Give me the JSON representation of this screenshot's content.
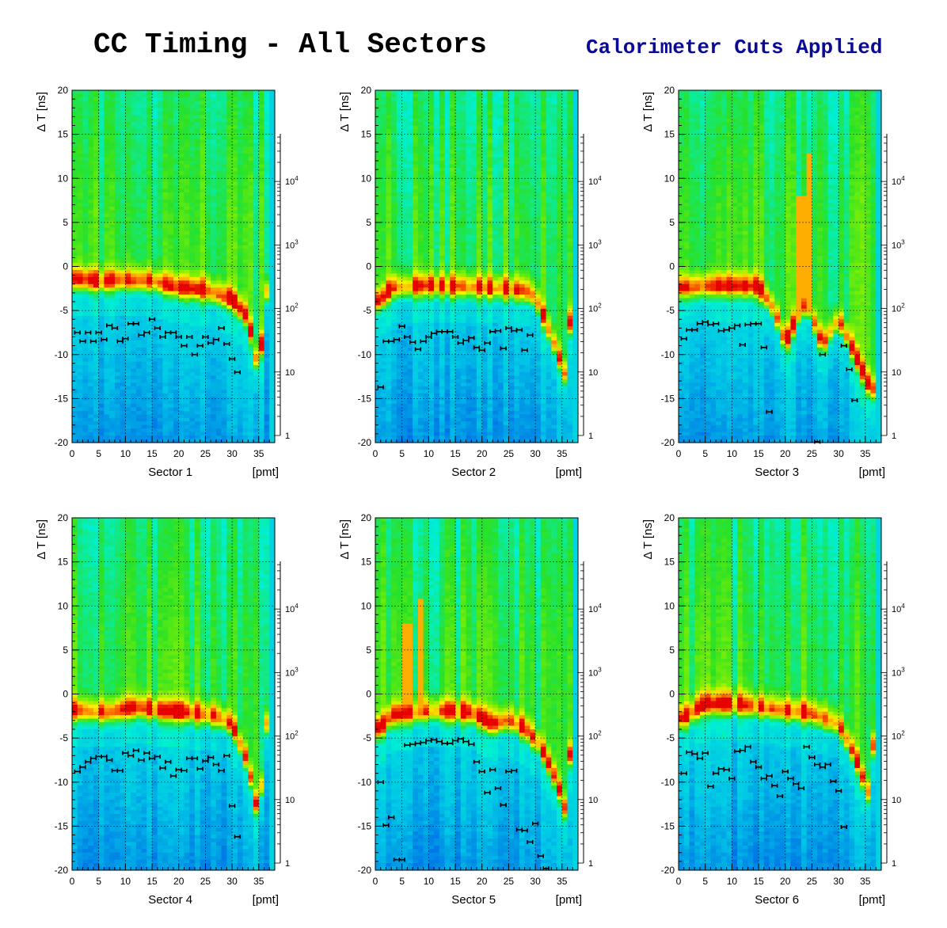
{
  "title": "CC Timing - All Sectors",
  "subtitle": "Calorimeter Cuts Applied",
  "colors": {
    "subtitle": "#0a0a96",
    "grid": "#000000",
    "markers": "#000000"
  },
  "chart_data": [
    {
      "type": "heatmap",
      "label": "Sector 1",
      "xunit": "[pmt]",
      "ylabel": "Δ T   [ns]",
      "xlim": [
        0,
        38
      ],
      "ylim": [
        -20,
        20
      ],
      "z_log": true,
      "grid": true,
      "xticks": [
        0,
        5,
        10,
        15,
        20,
        25,
        30,
        35
      ],
      "yticks": [
        -20,
        -15,
        -10,
        -5,
        0,
        5,
        10,
        15,
        20
      ],
      "zticks": [
        "1",
        "10",
        "10^2",
        "10^3",
        "10^4"
      ],
      "means": [
        [
          1,
          -7.5
        ],
        [
          2,
          -8.5
        ],
        [
          3,
          -7.5
        ],
        [
          4,
          -8.5
        ],
        [
          5,
          -7.5
        ],
        [
          6,
          -8.3
        ],
        [
          7,
          -6.7
        ],
        [
          8,
          -7.0
        ],
        [
          9,
          -8.5
        ],
        [
          10,
          -8.2
        ],
        [
          11,
          -6.5
        ],
        [
          12,
          -6.5
        ],
        [
          13,
          -7.8
        ],
        [
          14,
          -7.5
        ],
        [
          15,
          -6.0
        ],
        [
          16,
          -7.0
        ],
        [
          17,
          -8.0
        ],
        [
          18,
          -7.5
        ],
        [
          19,
          -7.5
        ],
        [
          20,
          -8.0
        ],
        [
          21,
          -9.0
        ],
        [
          22,
          -8.0
        ],
        [
          23,
          -10.0
        ],
        [
          24,
          -9.0
        ],
        [
          25,
          -8.0
        ],
        [
          26,
          -8.7
        ],
        [
          27,
          -8.3
        ],
        [
          28,
          -7.0
        ],
        [
          29,
          -8.8
        ],
        [
          30,
          -10.5
        ],
        [
          31,
          -12.0
        ]
      ],
      "peaks": [
        [
          1,
          -1.5
        ],
        [
          5,
          -1.8
        ],
        [
          10,
          -1.6
        ],
        [
          15,
          -1.8
        ],
        [
          20,
          -2.5
        ],
        [
          25,
          -2.8
        ],
        [
          30,
          -3.8
        ],
        [
          33,
          -6
        ],
        [
          35,
          -12
        ],
        [
          37,
          0
        ]
      ],
      "spikes": []
    },
    {
      "type": "heatmap",
      "label": "Sector 2",
      "xunit": "[pmt]",
      "ylabel": "Δ T   [ns]",
      "xlim": [
        0,
        38
      ],
      "ylim": [
        -20,
        20
      ],
      "z_log": true,
      "grid": true,
      "xticks": [
        0,
        5,
        10,
        15,
        20,
        25,
        30,
        35
      ],
      "yticks": [
        -20,
        -15,
        -10,
        -5,
        0,
        5,
        10,
        15,
        20
      ],
      "zticks": [
        "1",
        "10",
        "10^2",
        "10^3",
        "10^4"
      ],
      "means": [
        [
          1,
          -13.7
        ],
        [
          2,
          -8.5
        ],
        [
          3,
          -8.5
        ],
        [
          4,
          -8.3
        ],
        [
          5,
          -6.8
        ],
        [
          6,
          -8.0
        ],
        [
          7,
          -8.6
        ],
        [
          8,
          -9.4
        ],
        [
          9,
          -8.5
        ],
        [
          10,
          -8.0
        ],
        [
          11,
          -7.6
        ],
        [
          12,
          -7.4
        ],
        [
          13,
          -7.4
        ],
        [
          14,
          -7.4
        ],
        [
          15,
          -8.0
        ],
        [
          16,
          -8.7
        ],
        [
          17,
          -8.4
        ],
        [
          18,
          -8.1
        ],
        [
          19,
          -9.2
        ],
        [
          20,
          -9.5
        ],
        [
          21,
          -8.7
        ],
        [
          22,
          -7.4
        ],
        [
          23,
          -7.3
        ],
        [
          24,
          -9.3
        ],
        [
          25,
          -7.0
        ],
        [
          26,
          -7.3
        ],
        [
          27,
          -7.2
        ],
        [
          28,
          -9.5
        ],
        [
          29,
          -7.8
        ]
      ],
      "peaks": [
        [
          1,
          -4
        ],
        [
          3,
          -2.5
        ],
        [
          10,
          -2.3
        ],
        [
          20,
          -2.5
        ],
        [
          28,
          -2.8
        ],
        [
          30,
          -3.5
        ],
        [
          33,
          -8
        ],
        [
          36,
          -13
        ],
        [
          37,
          0
        ]
      ],
      "spikes": []
    },
    {
      "type": "heatmap",
      "label": "Sector 3",
      "xunit": "[pmt]",
      "ylabel": "Δ T   [ns]",
      "xlim": [
        0,
        38
      ],
      "ylim": [
        -20,
        20
      ],
      "z_log": true,
      "grid": true,
      "xticks": [
        0,
        5,
        10,
        15,
        20,
        25,
        30,
        35
      ],
      "yticks": [
        -20,
        -15,
        -10,
        -5,
        0,
        5,
        10,
        15,
        20
      ],
      "zticks": [
        "1",
        "10",
        "10^2",
        "10^3",
        "10^4"
      ],
      "means": [
        [
          1,
          -8.2
        ],
        [
          2,
          -7.2
        ],
        [
          3,
          -7.2
        ],
        [
          4,
          -6.5
        ],
        [
          5,
          -6.3
        ],
        [
          6,
          -6.6
        ],
        [
          7,
          -6.5
        ],
        [
          8,
          -7.3
        ],
        [
          9,
          -7.2
        ],
        [
          10,
          -7.0
        ],
        [
          11,
          -6.7
        ],
        [
          12,
          -8.9
        ],
        [
          13,
          -6.6
        ],
        [
          14,
          -6.5
        ],
        [
          15,
          -6.5
        ],
        [
          16,
          -9.2
        ],
        [
          17,
          -16.5
        ],
        [
          26,
          -19.9
        ],
        [
          27,
          -10.0
        ],
        [
          31,
          -9.0
        ],
        [
          32,
          -11.7
        ],
        [
          33,
          -15.2
        ]
      ],
      "peaks": [
        [
          1,
          -2.5
        ],
        [
          8,
          -2.3
        ],
        [
          15,
          -2.4
        ],
        [
          18,
          -5
        ],
        [
          20,
          -9
        ],
        [
          22,
          -6
        ],
        [
          24,
          -4
        ],
        [
          27,
          -9
        ],
        [
          30,
          -6
        ],
        [
          33,
          -10
        ],
        [
          36,
          -14
        ]
      ],
      "spikes": [
        [
          24.5,
          13
        ],
        [
          22.8,
          8
        ]
      ]
    },
    {
      "type": "heatmap",
      "label": "Sector 4",
      "xunit": "[pmt]",
      "ylabel": "Δ T   [ns]",
      "xlim": [
        0,
        38
      ],
      "ylim": [
        -20,
        20
      ],
      "z_log": true,
      "grid": true,
      "xticks": [
        0,
        5,
        10,
        15,
        20,
        25,
        30,
        35
      ],
      "yticks": [
        -20,
        -15,
        -10,
        -5,
        0,
        5,
        10,
        15,
        20
      ],
      "zticks": [
        "1",
        "10",
        "10^2",
        "10^3",
        "10^4"
      ],
      "means": [
        [
          1,
          -8.8
        ],
        [
          2,
          -8.3
        ],
        [
          3,
          -7.7
        ],
        [
          4,
          -7.3
        ],
        [
          5,
          -7.1
        ],
        [
          6,
          -7.1
        ],
        [
          7,
          -7.5
        ],
        [
          8,
          -8.7
        ],
        [
          9,
          -8.7
        ],
        [
          10,
          -6.7
        ],
        [
          11,
          -7.0
        ],
        [
          12,
          -6.4
        ],
        [
          13,
          -7.5
        ],
        [
          14,
          -6.7
        ],
        [
          15,
          -7.3
        ],
        [
          16,
          -7.1
        ],
        [
          17,
          -8.4
        ],
        [
          18,
          -7.7
        ],
        [
          19,
          -9.3
        ],
        [
          20,
          -8.6
        ],
        [
          21,
          -8.7
        ],
        [
          22,
          -7.3
        ],
        [
          23,
          -7.3
        ],
        [
          24,
          -8.5
        ],
        [
          25,
          -7.6
        ],
        [
          26,
          -7.2
        ],
        [
          27,
          -8.0
        ],
        [
          28,
          -8.7
        ],
        [
          29,
          -7.0
        ],
        [
          30,
          -12.7
        ],
        [
          31,
          -16.2
        ]
      ],
      "peaks": [
        [
          1,
          -2.0
        ],
        [
          7,
          -2.2
        ],
        [
          12,
          -1.6
        ],
        [
          17,
          -2.0
        ],
        [
          22,
          -2.2
        ],
        [
          27,
          -2.6
        ],
        [
          30,
          -3.5
        ],
        [
          33,
          -8
        ],
        [
          35,
          -14
        ],
        [
          37,
          0
        ]
      ],
      "spikes": []
    },
    {
      "type": "heatmap",
      "label": "Sector 5",
      "xunit": "[pmt]",
      "ylabel": "Δ T   [ns]",
      "xlim": [
        0,
        38
      ],
      "ylim": [
        -20,
        20
      ],
      "z_log": true,
      "grid": true,
      "xticks": [
        0,
        5,
        10,
        15,
        20,
        25,
        30,
        35
      ],
      "yticks": [
        -20,
        -15,
        -10,
        -5,
        0,
        5,
        10,
        15,
        20
      ],
      "zticks": [
        "1",
        "10",
        "10^2",
        "10^3",
        "10^4"
      ],
      "means": [
        [
          1,
          -10.0
        ],
        [
          2,
          -14.9
        ],
        [
          3,
          -14.0
        ],
        [
          4,
          -18.8
        ],
        [
          5,
          -18.8
        ],
        [
          6,
          -5.8
        ],
        [
          7,
          -5.7
        ],
        [
          8,
          -5.6
        ],
        [
          9,
          -5.5
        ],
        [
          10,
          -5.3
        ],
        [
          11,
          -5.2
        ],
        [
          12,
          -5.4
        ],
        [
          13,
          -5.6
        ],
        [
          14,
          -5.6
        ],
        [
          15,
          -5.3
        ],
        [
          16,
          -5.1
        ],
        [
          17,
          -5.4
        ],
        [
          18,
          -5.7
        ],
        [
          19,
          -7.7
        ],
        [
          20,
          -8.8
        ],
        [
          21,
          -11.2
        ],
        [
          22,
          -8.6
        ],
        [
          23,
          -10.7
        ],
        [
          24,
          -12.6
        ],
        [
          25,
          -8.8
        ],
        [
          26,
          -8.7
        ],
        [
          27,
          -15.4
        ],
        [
          28,
          -15.5
        ],
        [
          29,
          -16.8
        ],
        [
          30,
          -14.7
        ],
        [
          31,
          -18.4
        ],
        [
          32,
          -19.8
        ]
      ],
      "peaks": [
        [
          1,
          -4
        ],
        [
          3,
          -2.5
        ],
        [
          10,
          -2.0
        ],
        [
          18,
          -2.2
        ],
        [
          22,
          -3.5
        ],
        [
          25,
          -3.0
        ],
        [
          28,
          -4
        ],
        [
          31,
          -6
        ],
        [
          34,
          -10
        ],
        [
          36,
          -14
        ],
        [
          37,
          0
        ]
      ],
      "spikes": [
        [
          5.8,
          8
        ],
        [
          8.5,
          11
        ]
      ]
    },
    {
      "type": "heatmap",
      "label": "Sector 6",
      "xunit": "[pmt]",
      "ylabel": "Δ T   [ns]",
      "xlim": [
        0,
        38
      ],
      "ylim": [
        -20,
        20
      ],
      "z_log": true,
      "grid": true,
      "xticks": [
        0,
        5,
        10,
        15,
        20,
        25,
        30,
        35
      ],
      "yticks": [
        -20,
        -15,
        -10,
        -5,
        0,
        5,
        10,
        15,
        20
      ],
      "zticks": [
        "1",
        "10",
        "10^2",
        "10^3",
        "10^4"
      ],
      "means": [
        [
          1,
          -9.0
        ],
        [
          2,
          -6.6
        ],
        [
          3,
          -6.8
        ],
        [
          4,
          -7.3
        ],
        [
          5,
          -6.7
        ],
        [
          6,
          -10.5
        ],
        [
          7,
          -9.0
        ],
        [
          8,
          -8.5
        ],
        [
          9,
          -8.6
        ],
        [
          10,
          -9.6
        ],
        [
          11,
          -6.5
        ],
        [
          12,
          -6.4
        ],
        [
          13,
          -6.0
        ],
        [
          14,
          -7.7
        ],
        [
          15,
          -8.3
        ],
        [
          16,
          -9.6
        ],
        [
          17,
          -9.3
        ],
        [
          18,
          -10.4
        ],
        [
          19,
          -11.6
        ],
        [
          20,
          -8.8
        ],
        [
          21,
          -9.6
        ],
        [
          22,
          -10.2
        ],
        [
          23,
          -10.7
        ],
        [
          24,
          -6.0
        ],
        [
          25,
          -7.2
        ],
        [
          26,
          -8.0
        ],
        [
          27,
          -8.3
        ],
        [
          28,
          -8.0
        ],
        [
          29,
          -9.9
        ],
        [
          30,
          -11.0
        ],
        [
          31,
          -15.1
        ]
      ],
      "peaks": [
        [
          1,
          -2.8
        ],
        [
          5,
          -1.2
        ],
        [
          10,
          -1.2
        ],
        [
          15,
          -1.5
        ],
        [
          20,
          -2.0
        ],
        [
          25,
          -2.3
        ],
        [
          30,
          -3.5
        ],
        [
          33,
          -7
        ],
        [
          36,
          -12
        ],
        [
          37,
          0
        ]
      ],
      "spikes": []
    }
  ]
}
